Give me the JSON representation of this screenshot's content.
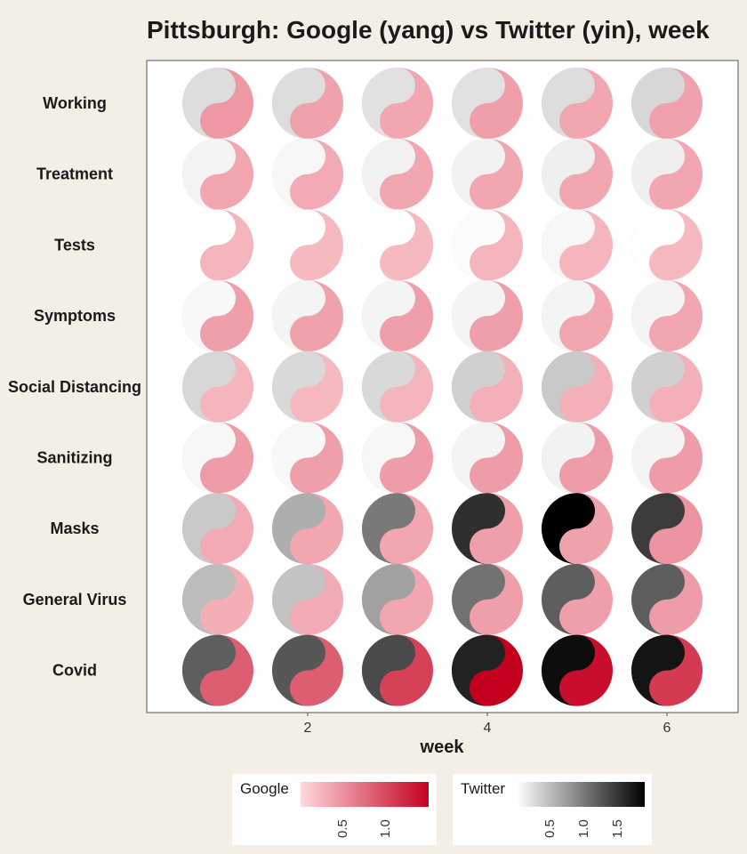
{
  "chart_data": {
    "type": "heatmap",
    "title": "Pittsburgh: Google (yang) vs Twitter (yin), week",
    "xlabel": "week",
    "ylabel": "",
    "x_ticks": [
      2,
      4,
      6
    ],
    "weeks": [
      1,
      2,
      3,
      4,
      5,
      6
    ],
    "categories": [
      "Working",
      "Treatment",
      "Tests",
      "Symptoms",
      "Social Distancing",
      "Sanitizing",
      "Masks",
      "General Virus",
      "Covid"
    ],
    "series": [
      {
        "name": "Google",
        "values": [
          [
            0.45,
            0.38,
            0.35,
            0.4,
            0.35,
            0.38
          ],
          [
            0.35,
            0.32,
            0.35,
            0.35,
            0.35,
            0.35
          ],
          [
            0.25,
            0.22,
            0.22,
            0.25,
            0.25,
            0.22
          ],
          [
            0.4,
            0.38,
            0.4,
            0.4,
            0.35,
            0.35
          ],
          [
            0.25,
            0.22,
            0.25,
            0.28,
            0.28,
            0.28
          ],
          [
            0.42,
            0.4,
            0.42,
            0.42,
            0.42,
            0.42
          ],
          [
            0.32,
            0.35,
            0.35,
            0.4,
            0.38,
            0.48
          ],
          [
            0.3,
            0.32,
            0.35,
            0.4,
            0.4,
            0.42
          ],
          [
            0.85,
            0.85,
            1.05,
            1.5,
            1.4,
            1.1
          ]
        ]
      },
      {
        "name": "Twitter",
        "values": [
          [
            0.25,
            0.25,
            0.22,
            0.22,
            0.25,
            0.3
          ],
          [
            0.08,
            0.06,
            0.1,
            0.1,
            0.12,
            0.12
          ],
          [
            0.0,
            0.0,
            0.0,
            0.02,
            0.06,
            0.0
          ],
          [
            0.05,
            0.08,
            0.08,
            0.08,
            0.08,
            0.08
          ],
          [
            0.3,
            0.28,
            0.28,
            0.35,
            0.4,
            0.35
          ],
          [
            0.06,
            0.05,
            0.06,
            0.08,
            0.1,
            0.08
          ],
          [
            0.4,
            0.6,
            1.0,
            1.55,
            1.9,
            1.45
          ],
          [
            0.5,
            0.45,
            0.7,
            1.05,
            1.2,
            1.2
          ],
          [
            1.2,
            1.25,
            1.35,
            1.65,
            1.8,
            1.75
          ]
        ]
      }
    ],
    "legend": {
      "google": {
        "title": "Google",
        "range": [
          0,
          1.5
        ],
        "ticks": [
          "0.5",
          "1.0"
        ],
        "tick_values": [
          0.5,
          1.0
        ],
        "color_low": "#ffd9dc",
        "color_high": "#c4001f"
      },
      "twitter": {
        "title": "Twitter",
        "range": [
          0,
          1.9
        ],
        "ticks": [
          "0.5",
          "1.0",
          "1.5"
        ],
        "tick_values": [
          0.5,
          1.0,
          1.5
        ],
        "color_low": "#ffffff",
        "color_high": "#000000"
      },
      "placement": "bottom"
    },
    "grid": false
  }
}
